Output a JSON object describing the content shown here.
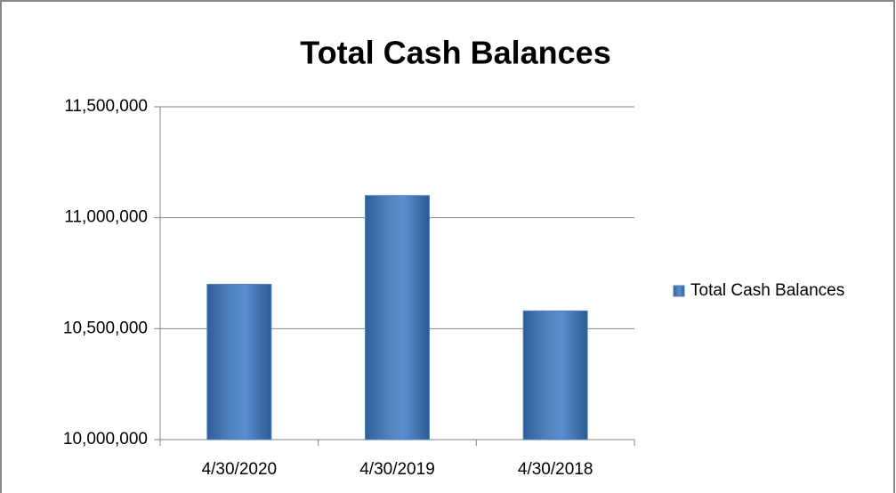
{
  "chart_data": {
    "type": "bar",
    "title": "Total Cash Balances",
    "categories": [
      "4/30/2020",
      "4/30/2019",
      "4/30/2018"
    ],
    "series": [
      {
        "name": "Total Cash Balances",
        "color": "#4f81bd",
        "values": [
          10700000,
          11100000,
          10580000
        ]
      }
    ],
    "ylim": [
      10000000,
      11500000
    ],
    "yticks": [
      {
        "value": 10000000,
        "label": "10,000,000"
      },
      {
        "value": 10500000,
        "label": "10,500,000"
      },
      {
        "value": 11000000,
        "label": "11,000,000"
      },
      {
        "value": 11500000,
        "label": "11,500,000"
      }
    ],
    "grid": true,
    "legend": "right"
  }
}
